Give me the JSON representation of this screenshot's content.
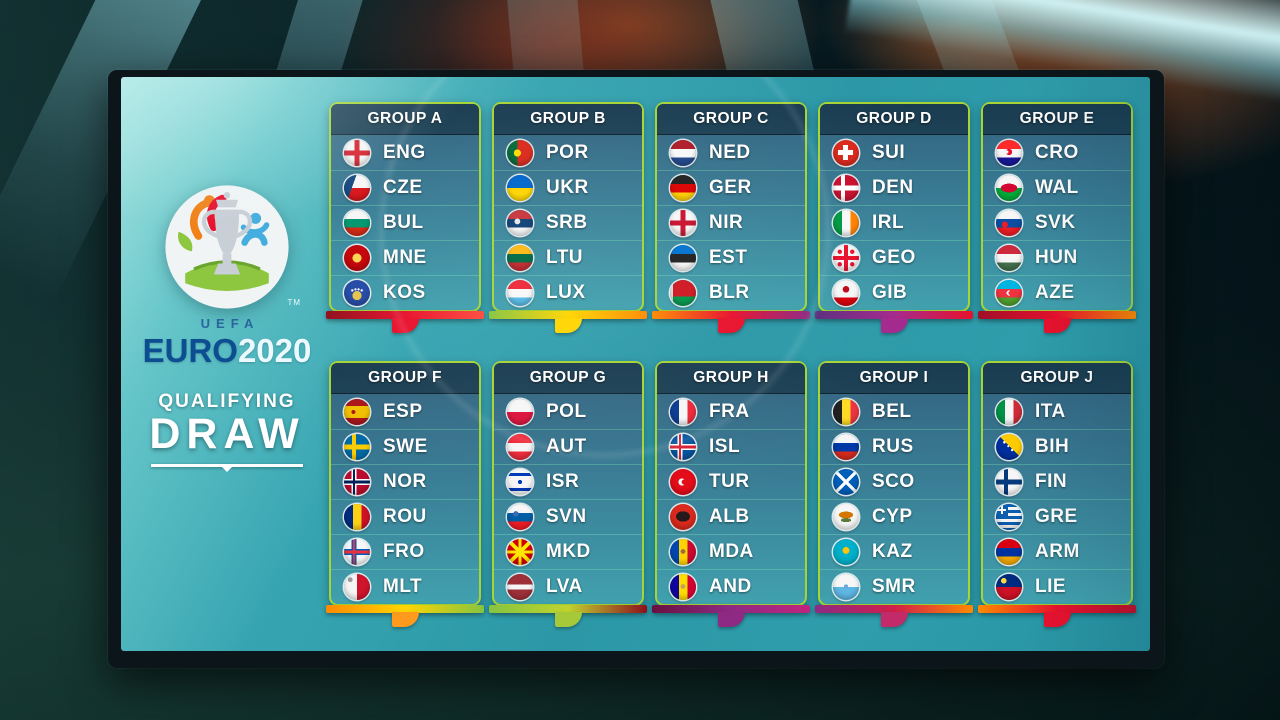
{
  "scene": {
    "screen_bg": "#2f9dab",
    "card_border": "#a6d435",
    "card_header_bg": "#1a3c51",
    "text_color": "#ffffff"
  },
  "branding": {
    "uefa": "UEFA",
    "euro": "EURO",
    "year": "2020",
    "trademark": "TM",
    "subtitle_line1": "QUALIFYING",
    "subtitle_line2": "DRAW"
  },
  "groups": [
    {
      "name": "GROUP A",
      "ribbon": [
        "#8f0f1d",
        "#e8112d",
        "#ff4b3e"
      ],
      "curl": "#e8112d",
      "teams": [
        {
          "code": "ENG",
          "flag": "eng"
        },
        {
          "code": "CZE",
          "flag": "cze"
        },
        {
          "code": "BUL",
          "flag": "bul"
        },
        {
          "code": "MNE",
          "flag": "mne"
        },
        {
          "code": "KOS",
          "flag": "kos"
        }
      ]
    },
    {
      "name": "GROUP B",
      "ribbon": [
        "#86c440",
        "#ffd500",
        "#ff8a00"
      ],
      "curl": "#ffd500",
      "teams": [
        {
          "code": "POR",
          "flag": "por"
        },
        {
          "code": "UKR",
          "flag": "ukr"
        },
        {
          "code": "SRB",
          "flag": "srb"
        },
        {
          "code": "LTU",
          "flag": "ltu"
        },
        {
          "code": "LUX",
          "flag": "lux"
        }
      ]
    },
    {
      "name": "GROUP C",
      "ribbon": [
        "#ff8a00",
        "#e8112d",
        "#8e2a84"
      ],
      "curl": "#e8112d",
      "teams": [
        {
          "code": "NED",
          "flag": "ned"
        },
        {
          "code": "GER",
          "flag": "ger"
        },
        {
          "code": "NIR",
          "flag": "nir"
        },
        {
          "code": "EST",
          "flag": "est"
        },
        {
          "code": "BLR",
          "flag": "blr"
        }
      ]
    },
    {
      "name": "GROUP D",
      "ribbon": [
        "#5b2d7e",
        "#a42a8e",
        "#e8112d"
      ],
      "curl": "#a42a8e",
      "teams": [
        {
          "code": "SUI",
          "flag": "sui"
        },
        {
          "code": "DEN",
          "flag": "den"
        },
        {
          "code": "IRL",
          "flag": "irl"
        },
        {
          "code": "GEO",
          "flag": "geo"
        },
        {
          "code": "GIB",
          "flag": "gib"
        }
      ]
    },
    {
      "name": "GROUP E",
      "ribbon": [
        "#a00f2a",
        "#e8112d",
        "#ff8a00"
      ],
      "curl": "#e8112d",
      "teams": [
        {
          "code": "CRO",
          "flag": "cro"
        },
        {
          "code": "WAL",
          "flag": "wal"
        },
        {
          "code": "SVK",
          "flag": "svk"
        },
        {
          "code": "HUN",
          "flag": "hun"
        },
        {
          "code": "AZE",
          "flag": "aze"
        }
      ]
    },
    {
      "name": "GROUP F",
      "ribbon": [
        "#ff8a00",
        "#ffd500",
        "#86c440"
      ],
      "curl": "#ff9a1e",
      "teams": [
        {
          "code": "ESP",
          "flag": "esp"
        },
        {
          "code": "SWE",
          "flag": "swe"
        },
        {
          "code": "NOR",
          "flag": "nor"
        },
        {
          "code": "ROU",
          "flag": "rou"
        },
        {
          "code": "FRO",
          "flag": "fro"
        },
        {
          "code": "MLT",
          "flag": "mlt"
        }
      ]
    },
    {
      "name": "GROUP G",
      "ribbon": [
        "#86c440",
        "#c0d32e",
        "#8f0f1d"
      ],
      "curl": "#a6c93a",
      "teams": [
        {
          "code": "POL",
          "flag": "pol"
        },
        {
          "code": "AUT",
          "flag": "aut"
        },
        {
          "code": "ISR",
          "flag": "isr"
        },
        {
          "code": "SVN",
          "flag": "svn"
        },
        {
          "code": "MKD",
          "flag": "mkd"
        },
        {
          "code": "LVA",
          "flag": "lva"
        }
      ]
    },
    {
      "name": "GROUP H",
      "ribbon": [
        "#6a1040",
        "#8e2a84",
        "#c0257e"
      ],
      "curl": "#8e2a84",
      "teams": [
        {
          "code": "FRA",
          "flag": "fra"
        },
        {
          "code": "ISL",
          "flag": "isl"
        },
        {
          "code": "TUR",
          "flag": "tur"
        },
        {
          "code": "ALB",
          "flag": "alb"
        },
        {
          "code": "MDA",
          "flag": "mda"
        },
        {
          "code": "AND",
          "flag": "and"
        }
      ]
    },
    {
      "name": "GROUP I",
      "ribbon": [
        "#8e2a84",
        "#d01f4a",
        "#ff8a00"
      ],
      "curl": "#c22a6a",
      "teams": [
        {
          "code": "BEL",
          "flag": "bel"
        },
        {
          "code": "RUS",
          "flag": "rus"
        },
        {
          "code": "SCO",
          "flag": "sco"
        },
        {
          "code": "CYP",
          "flag": "cyp"
        },
        {
          "code": "KAZ",
          "flag": "kaz"
        },
        {
          "code": "SMR",
          "flag": "smr"
        }
      ]
    },
    {
      "name": "GROUP J",
      "ribbon": [
        "#ff8a00",
        "#e8112d",
        "#c00f2a"
      ],
      "curl": "#e8112d",
      "teams": [
        {
          "code": "ITA",
          "flag": "ita"
        },
        {
          "code": "BIH",
          "flag": "bih"
        },
        {
          "code": "FIN",
          "flag": "fin"
        },
        {
          "code": "GRE",
          "flag": "gre"
        },
        {
          "code": "ARM",
          "flag": "arm"
        },
        {
          "code": "LIE",
          "flag": "lie"
        }
      ]
    }
  ],
  "flags": {
    "eng": "linear-gradient(to bottom, transparent 40%, #d6212e 40% 60%, transparent 60%), linear-gradient(to right, transparent 40%, #d6212e 40% 60%, transparent 60%), #f6f6f6",
    "cze": "linear-gradient(110deg, #11457e 35%, transparent 35.5%), linear-gradient(to bottom, #f6f6f6 50%, #d7141a 50%)",
    "bul": "linear-gradient(to bottom, #f6f6f6 34%, #00966e 34% 67%, #d62612 67%)",
    "mne": "radial-gradient(circle at 50% 50%, #ffd550 24%, transparent 25%), #c40308",
    "kos": "radial-gradient(circle at 32% 40%, #fff 4%, transparent 6%), radial-gradient(circle at 44% 36%, #fff 4%, transparent 6%), radial-gradient(circle at 56% 36%, #fff 4%, transparent 6%), radial-gradient(circle at 68% 40%, #fff 4%, transparent 6%), radial-gradient(circle at 50% 60%, #e6c34c 22%, transparent 23%), #244aa5",
    "por": "radial-gradient(circle at 40% 50%, #ffdd00 17%, transparent 18%), linear-gradient(to right, #046a38 40%, #da291c 40%)",
    "ukr": "linear-gradient(to bottom, #0066cc 50%, #ffd500 50%)",
    "srb": "radial-gradient(circle at 40% 44%, #e6e6e6 13%, transparent 14%), linear-gradient(to bottom, #c6363c 34%, #0c4076 34% 67%, #f6f6f6 67%)",
    "ltu": "linear-gradient(to bottom, #fdb913 34%, #006a44 34% 67%, #c1272d 67%)",
    "lux": "linear-gradient(to bottom, #ed2939 34%, #f8f8f8 34% 67%, #55b9e6 67%)",
    "ned": "linear-gradient(to bottom, #ae1c28 34%, #f8f8f8 34% 67%, #21468b 67%)",
    "ger": "linear-gradient(to bottom, #202020 34%, #dd0000 34% 67%, #ffce00 67%)",
    "nir": "radial-gradient(circle at 50% 50%, #c8102e 14%, transparent 15%), linear-gradient(to bottom, transparent 41%, #c8102e 41% 59%, transparent 59%), linear-gradient(to right, transparent 41%, #c8102e 41% 59%, transparent 59%), #f6f6f6",
    "est": "linear-gradient(to bottom, #0072ce 34%, #202020 34% 67%, #f6f6f6 67%)",
    "blr": "linear-gradient(#e8e2dc, #e8e2dc) 0 0/13% 100% no-repeat, linear-gradient(to bottom, #ce1720 64%, #00964a 64%)",
    "sui": "linear-gradient(#fff, #fff) 50% 50%/58% 20% no-repeat, linear-gradient(#fff, #fff) 50% 50%/20% 58% no-repeat, #da291c",
    "den": "linear-gradient(to bottom, transparent 40%, #fff 40% 60%, transparent 60%), linear-gradient(to right, transparent 30%, #fff 30% 46%, transparent 46%), #c8102e",
    "irl": "linear-gradient(to right, #009a44 34%, #f8f8f8 34% 67%, #ff8200 67%)",
    "geo": "radial-gradient(circle at 26% 26%, #e8112d 7%, transparent 9%), radial-gradient(circle at 74% 26%, #e8112d 7%, transparent 9%), radial-gradient(circle at 26% 74%, #e8112d 7%, transparent 9%), radial-gradient(circle at 74% 74%, #e8112d 7%, transparent 9%), linear-gradient(to bottom, transparent 43%, #e8112d 43% 57%, transparent 57%), linear-gradient(to right, transparent 43%, #e8112d 43% 57%, transparent 57%), #f6f6f6",
    "gib": "radial-gradient(circle at 50% 36%, #c00a18 15%, transparent 16%), linear-gradient(to bottom, #f6f6f6 67%, #da000c 67%)",
    "cro": "radial-gradient(circle at 42% 46%, #f6f6f6 7%, transparent 8%), radial-gradient(circle at 50% 46%, #e8112d 16%, transparent 17%), linear-gradient(to bottom, #ff2b2b 34%, #f6f6f6 34% 67%, #171796 67%)",
    "wal": "radial-gradient(ellipse 32% 17% at 50% 50%, #d30731 98%, transparent), linear-gradient(to bottom, #f6f6f6 50%, #00ab39 50%)",
    "svk": "radial-gradient(circle at 34% 56%, #ee1c25 13%, transparent 14%), linear-gradient(to bottom, #f6f6f6 34%, #0b4ea2 34% 67%, #ee1c25 67%)",
    "hun": "linear-gradient(to bottom, #cd2a3e 34%, #f6f6f6 34% 67%, #436f4d 67%)",
    "aze": "radial-gradient(circle at 56% 50%, #ef3340 10%, transparent 11%), radial-gradient(circle at 50% 50%, #f8f8f8 13%, transparent 14%), linear-gradient(to bottom, #00b5e2 34%, #ef3340 34% 67%, #509e2f 67%)",
    "esp": "radial-gradient(circle at 36% 50%, #ad1519 9%, transparent 10%), linear-gradient(to bottom, #aa151b 26%, #f1bf00 26% 74%, #aa151b 74%)",
    "swe": "linear-gradient(to bottom, transparent 40%, #fecc02 40% 60%, transparent 60%), linear-gradient(to right, transparent 30%, #fecc02 30% 46%, transparent 46%), #006aa7",
    "nor": "linear-gradient(to bottom, transparent 45%, #00205b 45% 55%, transparent 55%), linear-gradient(to right, transparent 35%, #00205b 35% 43%, transparent 43%), linear-gradient(to bottom, transparent 39%, #fff 39% 61%, transparent 61%), linear-gradient(to right, transparent 29%, #fff 29% 49%, transparent 49%), #ba0c2f",
    "rou": "linear-gradient(to right, #002b7f 34%, #fcd116 34% 67%, #ce1126 67%)",
    "fro": "linear-gradient(to bottom, transparent 45%, #ef303e 45% 55%, transparent 55%), linear-gradient(to right, transparent 35%, #ef303e 35% 43%, transparent 43%), linear-gradient(to bottom, transparent 39%, #005eb9 39% 61%, transparent 61%), linear-gradient(to right, transparent 29%, #005eb9 29% 49%, transparent 49%), #f6f6f6",
    "mlt": "radial-gradient(circle at 24% 22%, #9a9a9a 8%, transparent 9%), linear-gradient(to right, #f6f6f6 50%, #cf142b 50%)",
    "pol": "linear-gradient(to bottom, #f6f6f6 50%, #dc143c 50%)",
    "aut": "linear-gradient(to bottom, #ed2939 34%, #f6f6f6 34% 67%, #ed2939 67%)",
    "isr": "radial-gradient(circle at 50% 50%, #0038b8 11%, transparent 12%), linear-gradient(to bottom, transparent 16%, #0038b8 16% 27%, transparent 27% 73%, #0038b8 73% 84%, transparent 84%), #f6f6f6",
    "svn": "radial-gradient(circle at 34% 38%, #3c6ab2 11%, transparent 12%), linear-gradient(to bottom, #f6f6f6 34%, #005da4 34% 67%, #ed1c24 67%)",
    "mkd": "radial-gradient(circle at 50% 50%, #ffe600 19%, transparent 20%), linear-gradient(45deg, transparent 45%, #ffe600 45% 55%, transparent 55%), linear-gradient(135deg, transparent 45%, #ffe600 45% 55%, transparent 55%), linear-gradient(to right, transparent 45%, #ffe600 45% 55%, transparent 55%), linear-gradient(to bottom, transparent 45%, #ffe600 45% 55%, transparent 55%), #d20000",
    "lva": "linear-gradient(to bottom, #9e3039 40%, #f6f6f6 40% 60%, #9e3039 60%)",
    "fra": "linear-gradient(to right, #0a3a93 34%, #f6f6f6 34% 67%, #ed2939 67%)",
    "isl": "linear-gradient(to bottom, transparent 45%, #dc1e35 45% 55%, transparent 55%), linear-gradient(to right, transparent 35%, #dc1e35 35% 43%, transparent 43%), linear-gradient(to bottom, transparent 39%, #fff 39% 61%, transparent 61%), linear-gradient(to right, transparent 29%, #fff 29% 49%, transparent 49%), #02529c",
    "tur": "radial-gradient(circle at 55% 50%, #e30a17 13%, transparent 14%), radial-gradient(circle at 46% 50%, #f8f8f8 18%, transparent 19%), #e30a17",
    "alb": "radial-gradient(ellipse 27% 20% at 50% 48%, #26191b 98%, transparent), #da291c",
    "mda": "radial-gradient(circle at 50% 48%, #9c6d3f 12%, transparent 13%), linear-gradient(to right, #0046ae 34%, #ffd200 34% 67%, #cc092f 67%)",
    "and": "radial-gradient(circle at 50% 48%, #c7a356 12%, transparent 13%), linear-gradient(to right, #10069f 34%, #fedd00 34% 67%, #d50032 67%)",
    "bel": "linear-gradient(to right, #202020 34%, #fdda24 34% 67%, #ef3340 67%)",
    "rus": "linear-gradient(to bottom, #f6f6f6 34%, #0039a6 34% 67%, #d52b1e 67%)",
    "sco": "linear-gradient(45deg, transparent 46%, #fff 46% 54%, transparent 54%), linear-gradient(135deg, transparent 46%, #fff 46% 54%, transparent 54%), #005eb8",
    "cyp": "radial-gradient(ellipse 28% 13% at 50% 42%, #d47600 98%, transparent), radial-gradient(ellipse 20% 8% at 50% 62%, #5b7a37 98%, transparent), #f6f6f6",
    "kaz": "radial-gradient(circle at 50% 44%, #fec50c 17%, transparent 18%), #00afca",
    "smr": "radial-gradient(circle at 50% 48%, #6da8d8 11%, transparent 12%), linear-gradient(to bottom, #f6f6f6 50%, #5eb6e4 50%)",
    "ita": "linear-gradient(to right, #009246 34%, #f6f6f6 34% 67%, #ce2b37 67%)",
    "bih": "radial-gradient(circle at 32% 32%, #fff 4%, transparent 6%), radial-gradient(circle at 47% 47%, #fff 4%, transparent 6%), radial-gradient(circle at 62% 62%, #fff 4%, transparent 6%), linear-gradient(to top right, transparent 52%, #fecb00 52%), #002f9e",
    "fin": "linear-gradient(to bottom, transparent 40%, #063a7c 40% 60%, transparent 60%), linear-gradient(to right, transparent 30%, #063a7c 30% 46%, transparent 46%), #f6f6f6",
    "gre": "linear-gradient(#f8f8f8, #f8f8f8) 1px 5px/9px 2px no-repeat, linear-gradient(#f8f8f8, #f8f8f8) 5px 1px/2px 9px no-repeat, linear-gradient(#0d5eaf, #0d5eaf) 0 0/12px 12px no-repeat, repeating-linear-gradient(to bottom, #0d5eaf 0 3px, #f4f4f4 3px 6px)",
    "arm": "linear-gradient(to bottom, #d90012 34%, #0033a0 34% 67%, #f2a800 67%)",
    "lie": "radial-gradient(circle at 30% 26%, #ffd83d 10%, transparent 11%), linear-gradient(to bottom, #002b7f 50%, #ce1126 50%)"
  }
}
